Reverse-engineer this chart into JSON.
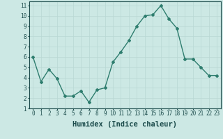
{
  "x": [
    0,
    1,
    2,
    3,
    4,
    5,
    6,
    7,
    8,
    9,
    10,
    11,
    12,
    13,
    14,
    15,
    16,
    17,
    18,
    19,
    20,
    21,
    22,
    23
  ],
  "y": [
    6.0,
    3.6,
    4.8,
    3.9,
    2.2,
    2.2,
    2.7,
    1.6,
    2.8,
    3.0,
    5.5,
    6.5,
    7.6,
    9.0,
    10.0,
    10.1,
    11.0,
    9.7,
    8.8,
    5.8,
    5.8,
    5.0,
    4.2,
    4.2
  ],
  "line_color": "#2e7d6e",
  "marker": "D",
  "marker_size": 2.0,
  "bg_color": "#cce8e4",
  "grid_color": "#b8d8d4",
  "xlabel": "Humidex (Indice chaleur)",
  "xlim": [
    -0.5,
    23.5
  ],
  "ylim": [
    1,
    11.4
  ],
  "yticks": [
    1,
    2,
    3,
    4,
    5,
    6,
    7,
    8,
    9,
    10,
    11
  ],
  "xticks": [
    0,
    1,
    2,
    3,
    4,
    5,
    6,
    7,
    8,
    9,
    10,
    11,
    12,
    13,
    14,
    15,
    16,
    17,
    18,
    19,
    20,
    21,
    22,
    23
  ],
  "tick_color": "#1a4a4a",
  "spine_color": "#1a4a4a",
  "xlabel_fontsize": 7.5,
  "tick_fontsize": 5.5,
  "linewidth": 1.0
}
